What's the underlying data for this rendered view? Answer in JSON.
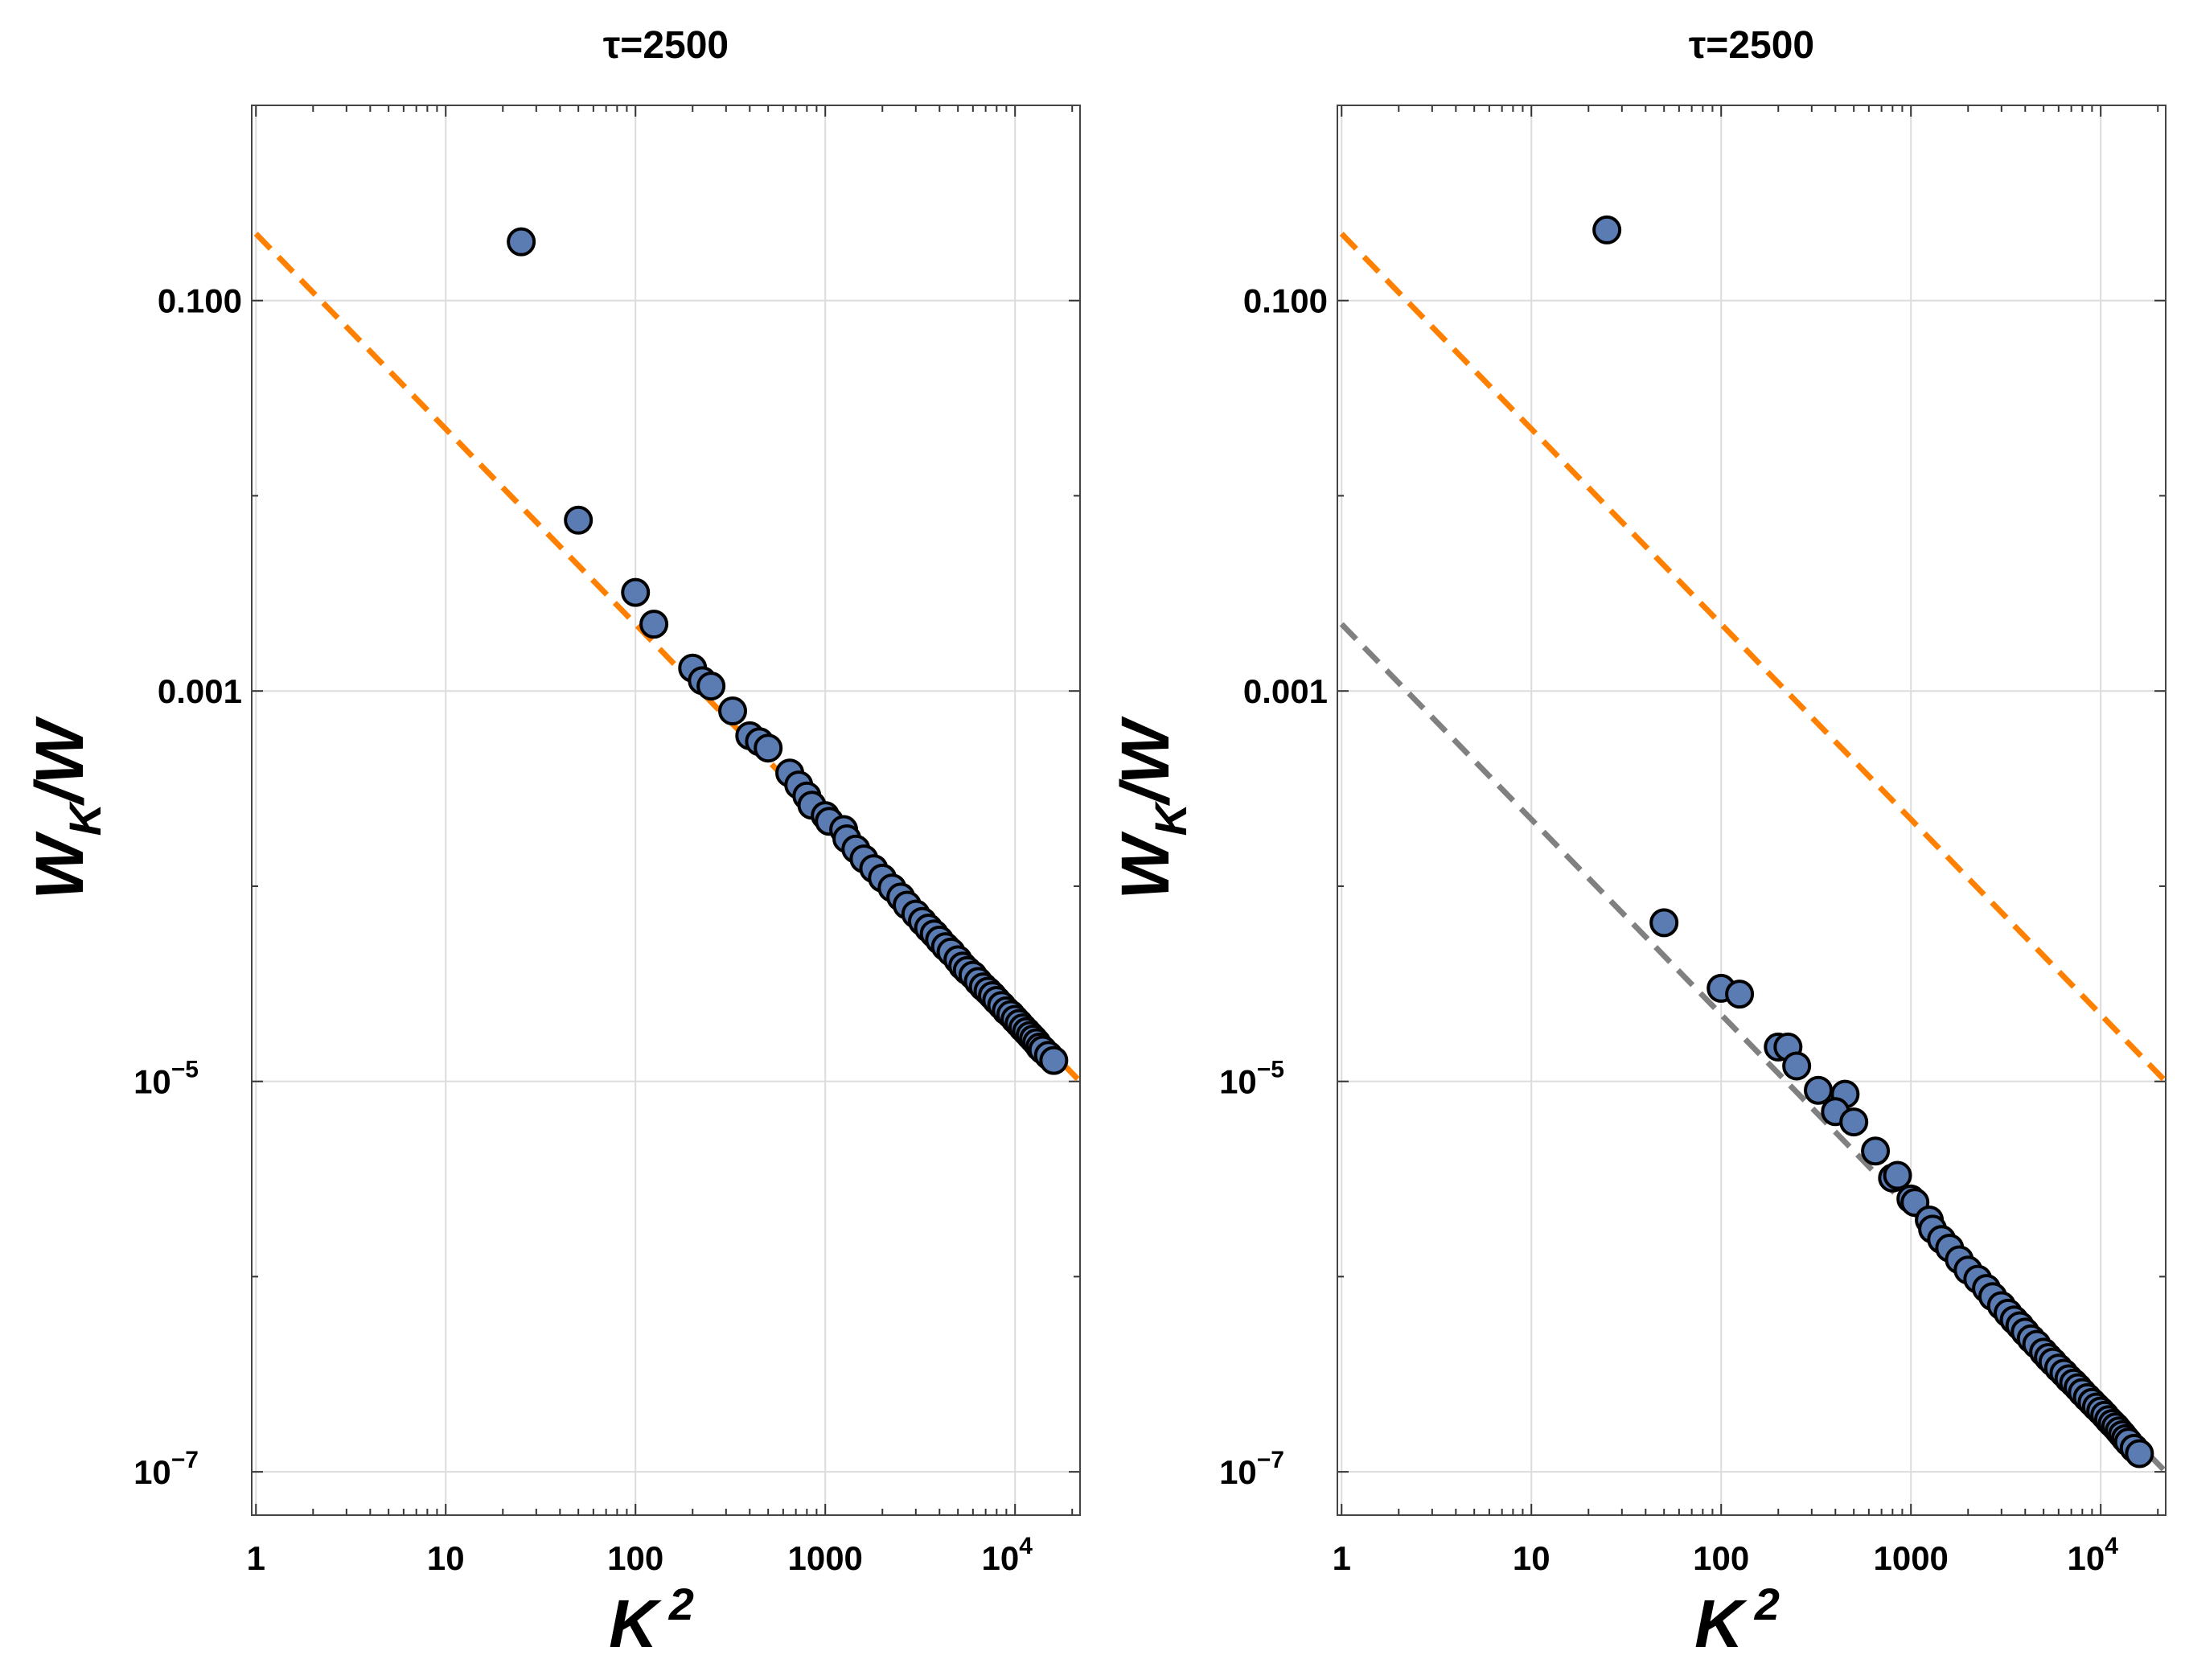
{
  "chart_data": [
    {
      "type": "scatter",
      "title": "τ=2500",
      "xlabel": "K",
      "xlabel_sup": "2",
      "ylabel": "W",
      "ylabel_sub": "K",
      "ylabel_tail": "/W",
      "xscale": "log",
      "yscale": "log",
      "xlim": [
        0.95,
        22000
      ],
      "ylim": [
        6e-08,
        1.0
      ],
      "grid": true,
      "x_ticks": [
        {
          "value": 1,
          "label": "1"
        },
        {
          "value": 10,
          "label": "10"
        },
        {
          "value": 100,
          "label": "100"
        },
        {
          "value": 1000,
          "label": "1000"
        },
        {
          "value": 10000,
          "label": "10",
          "sup": "4"
        }
      ],
      "y_ticks": [
        {
          "value": 0.1,
          "label": "0.100"
        },
        {
          "value": 0.001,
          "label": "0.001"
        },
        {
          "value": 1e-05,
          "label": "10",
          "sup": "−5"
        },
        {
          "value": 1e-07,
          "label": "10",
          "sup": "−7"
        }
      ],
      "marker_color": "#5b7cb3",
      "points": {
        "x": [
          25,
          50,
          100,
          125,
          200,
          225,
          250,
          325,
          400,
          450,
          500,
          650,
          725,
          800,
          850,
          1000,
          1050,
          1250,
          1300,
          1450,
          1600,
          1800,
          2000,
          2250,
          2500,
          2700,
          3000,
          3250,
          3500,
          3750,
          4000,
          4300,
          4600,
          5000,
          5300,
          5600,
          6000,
          6400,
          6800,
          7200,
          7600,
          8000,
          8500,
          9000,
          9500,
          10000,
          10500,
          11000,
          11500,
          12000,
          12500,
          13000,
          13500,
          14000,
          15000,
          16000
        ],
        "y": [
          0.2,
          0.0075,
          0.0032,
          0.0022,
          0.00131,
          0.00113,
          0.00106,
          0.00079,
          0.00059,
          0.00055,
          0.00051,
          0.00038,
          0.00033,
          0.00029,
          0.00026,
          0.00023,
          0.000215,
          0.000195,
          0.000175,
          0.000155,
          0.000138,
          0.000123,
          0.00011,
          9.8e-05,
          8.8e-05,
          8e-05,
          7.2e-05,
          6.6e-05,
          6.1e-05,
          5.7e-05,
          5.3e-05,
          4.9e-05,
          4.6e-05,
          4.2e-05,
          3.9e-05,
          3.7e-05,
          3.5e-05,
          3.25e-05,
          3.05e-05,
          2.9e-05,
          2.75e-05,
          2.6e-05,
          2.45e-05,
          2.3e-05,
          2.2e-05,
          2.08e-05,
          1.98e-05,
          1.88e-05,
          1.8e-05,
          1.72e-05,
          1.65e-05,
          1.58e-05,
          1.5e-05,
          1.45e-05,
          1.36e-05,
          1.28e-05
        ]
      },
      "lines": [
        {
          "name": "orange dashed",
          "color": "#ff8000",
          "dashed": true,
          "x": [
            1,
            22000
          ],
          "y": [
            0.22,
            1e-05
          ]
        }
      ]
    },
    {
      "type": "scatter",
      "title": "τ=2500",
      "xlabel": "K",
      "xlabel_sup": "2",
      "ylabel": "W",
      "ylabel_sub": "K",
      "ylabel_tail": "/W",
      "xscale": "log",
      "yscale": "log",
      "xlim": [
        0.95,
        22000
      ],
      "ylim": [
        6e-08,
        1.0
      ],
      "grid": true,
      "x_ticks": [
        {
          "value": 1,
          "label": "1"
        },
        {
          "value": 10,
          "label": "10"
        },
        {
          "value": 100,
          "label": "100"
        },
        {
          "value": 1000,
          "label": "1000"
        },
        {
          "value": 10000,
          "label": "10",
          "sup": "4"
        }
      ],
      "y_ticks": [
        {
          "value": 0.1,
          "label": "0.100"
        },
        {
          "value": 0.001,
          "label": "0.001"
        },
        {
          "value": 1e-05,
          "label": "10",
          "sup": "−5"
        },
        {
          "value": 1e-07,
          "label": "10",
          "sup": "−7"
        }
      ],
      "marker_color": "#5b7cb3",
      "points": {
        "x": [
          25,
          50,
          100,
          125,
          200,
          225,
          250,
          325,
          450,
          400,
          500,
          650,
          800,
          850,
          1000,
          1050,
          1250,
          1300,
          1450,
          1600,
          1800,
          2000,
          2250,
          2500,
          2700,
          3000,
          3250,
          3500,
          3750,
          4000,
          4300,
          4600,
          5000,
          5300,
          5600,
          6000,
          6400,
          6800,
          7200,
          7600,
          8000,
          8500,
          9000,
          9500,
          10000,
          10500,
          11000,
          11500,
          12000,
          12500,
          13000,
          13500,
          14000,
          15000,
          16000
        ],
        "y": [
          0.23,
          6.5e-05,
          3e-05,
          2.8e-05,
          1.5e-05,
          1.5e-05,
          1.2e-05,
          9e-06,
          8.6e-06,
          7e-06,
          6.2e-06,
          4.4e-06,
          3.2e-06,
          3.3e-06,
          2.5e-06,
          2.4e-06,
          1.95e-06,
          1.75e-06,
          1.55e-06,
          1.4e-06,
          1.22e-06,
          1.08e-06,
          9.7e-07,
          8.7e-07,
          7.9e-07,
          7.1e-07,
          6.5e-07,
          6e-07,
          5.6e-07,
          5.2e-07,
          4.8e-07,
          4.5e-07,
          4.1e-07,
          3.85e-07,
          3.65e-07,
          3.4e-07,
          3.2e-07,
          3e-07,
          2.85e-07,
          2.7e-07,
          2.55e-07,
          2.4e-07,
          2.27e-07,
          2.15e-07,
          2.05e-07,
          1.95e-07,
          1.85e-07,
          1.77e-07,
          1.7e-07,
          1.62e-07,
          1.55e-07,
          1.48e-07,
          1.42e-07,
          1.32e-07,
          1.24e-07
        ]
      },
      "lines": [
        {
          "name": "orange dashed",
          "color": "#ff8000",
          "dashed": true,
          "x": [
            1,
            22000
          ],
          "y": [
            0.22,
            1e-05
          ]
        },
        {
          "name": "gray dashed",
          "color": "#808080",
          "dashed": true,
          "x": [
            1,
            22000
          ],
          "y": [
            0.0022,
            1e-07
          ]
        }
      ]
    }
  ]
}
